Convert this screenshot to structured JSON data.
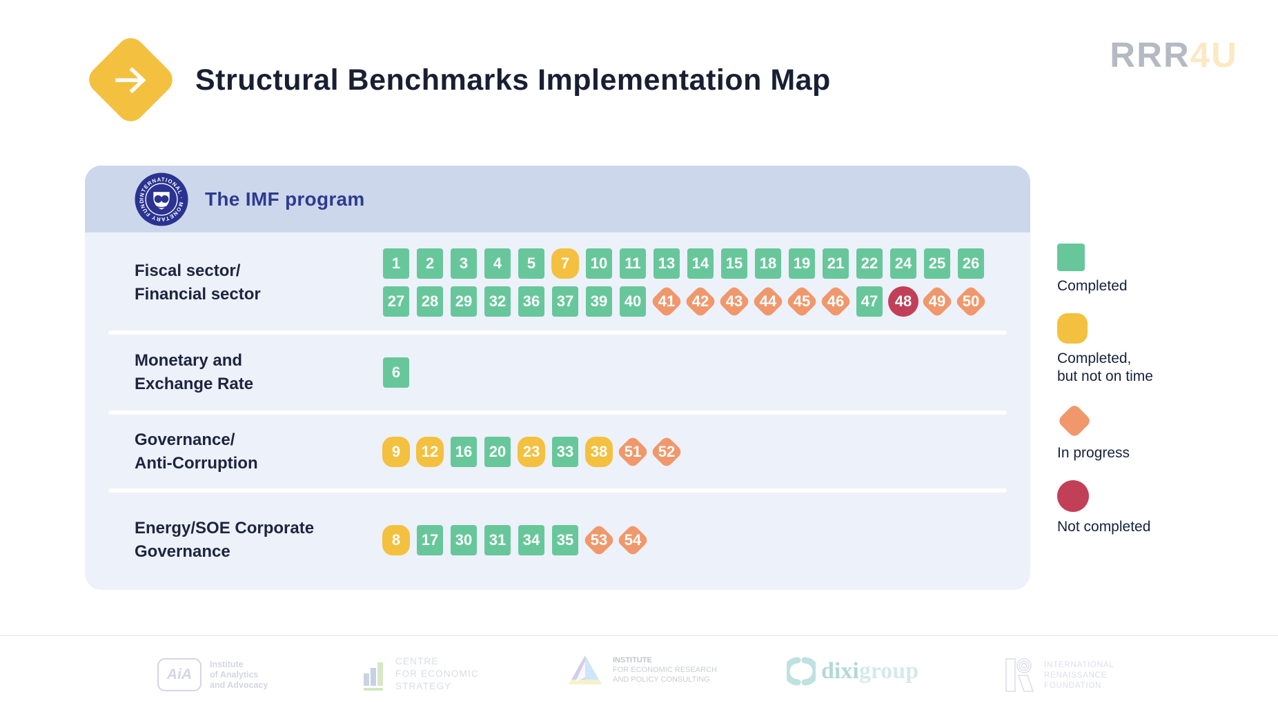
{
  "header": {
    "title": "Structural Benchmarks Implementation Map",
    "brand": {
      "gray": "RRR",
      "accent": "4U"
    }
  },
  "panel": {
    "title": "The IMF program",
    "imf_ring_text": "INTERNATIONAL · MONETARY FUND ·",
    "rows": [
      {
        "label": [
          "Fiscal sector/",
          "Financial sector"
        ],
        "lines": [
          [
            {
              "n": "1",
              "s": "completed"
            },
            {
              "n": "2",
              "s": "completed"
            },
            {
              "n": "3",
              "s": "completed"
            },
            {
              "n": "4",
              "s": "completed"
            },
            {
              "n": "5",
              "s": "completed"
            },
            {
              "n": "7",
              "s": "late"
            },
            {
              "n": "10",
              "s": "completed"
            },
            {
              "n": "11",
              "s": "completed"
            },
            {
              "n": "13",
              "s": "completed"
            },
            {
              "n": "14",
              "s": "completed"
            },
            {
              "n": "15",
              "s": "completed"
            },
            {
              "n": "18",
              "s": "completed"
            },
            {
              "n": "19",
              "s": "completed"
            },
            {
              "n": "21",
              "s": "completed"
            },
            {
              "n": "22",
              "s": "completed"
            },
            {
              "n": "24",
              "s": "completed"
            },
            {
              "n": "25",
              "s": "completed"
            },
            {
              "n": "26",
              "s": "completed"
            }
          ],
          [
            {
              "n": "27",
              "s": "completed"
            },
            {
              "n": "28",
              "s": "completed"
            },
            {
              "n": "29",
              "s": "completed"
            },
            {
              "n": "32",
              "s": "completed"
            },
            {
              "n": "36",
              "s": "completed"
            },
            {
              "n": "37",
              "s": "completed"
            },
            {
              "n": "39",
              "s": "completed"
            },
            {
              "n": "40",
              "s": "completed"
            },
            {
              "n": "41",
              "s": "in_progress"
            },
            {
              "n": "42",
              "s": "in_progress"
            },
            {
              "n": "43",
              "s": "in_progress"
            },
            {
              "n": "44",
              "s": "in_progress"
            },
            {
              "n": "45",
              "s": "in_progress"
            },
            {
              "n": "46",
              "s": "in_progress"
            },
            {
              "n": "47",
              "s": "completed"
            },
            {
              "n": "48",
              "s": "not_completed"
            },
            {
              "n": "49",
              "s": "in_progress"
            },
            {
              "n": "50",
              "s": "in_progress"
            }
          ]
        ]
      },
      {
        "label": [
          "Monetary and",
          "Exchange Rate"
        ],
        "lines": [
          [
            {
              "n": "6",
              "s": "completed"
            }
          ]
        ]
      },
      {
        "label": [
          "Governance/",
          "Anti-Corruption"
        ],
        "lines": [
          [
            {
              "n": "9",
              "s": "late"
            },
            {
              "n": "12",
              "s": "late"
            },
            {
              "n": "16",
              "s": "completed"
            },
            {
              "n": "20",
              "s": "completed"
            },
            {
              "n": "23",
              "s": "late"
            },
            {
              "n": "33",
              "s": "completed"
            },
            {
              "n": "38",
              "s": "late"
            },
            {
              "n": "51",
              "s": "in_progress"
            },
            {
              "n": "52",
              "s": "in_progress"
            }
          ]
        ]
      },
      {
        "label": [
          "Energy/SOE Corporate",
          "Governance"
        ],
        "lines": [
          [
            {
              "n": "8",
              "s": "late"
            },
            {
              "n": "17",
              "s": "completed"
            },
            {
              "n": "30",
              "s": "completed"
            },
            {
              "n": "31",
              "s": "completed"
            },
            {
              "n": "34",
              "s": "completed"
            },
            {
              "n": "35",
              "s": "completed"
            },
            {
              "n": "53",
              "s": "in_progress"
            },
            {
              "n": "54",
              "s": "in_progress"
            }
          ]
        ]
      }
    ]
  },
  "legend": [
    {
      "status": "completed",
      "label": [
        "Completed"
      ]
    },
    {
      "status": "late",
      "label": [
        "Completed,",
        "but not on time"
      ]
    },
    {
      "status": "in_progress",
      "label": [
        "In progress"
      ]
    },
    {
      "status": "not_completed",
      "label": [
        "Not completed"
      ]
    }
  ],
  "footer": {
    "logos": [
      {
        "mark": "AiA",
        "text": [
          "Institute",
          "of Analytics",
          "and Advocacy"
        ]
      },
      {
        "text": [
          "CENTRE",
          "FOR ECONOMIC",
          "STRATEGY"
        ]
      },
      {
        "text": [
          "INSTITUTE",
          "FOR ECONOMIC RESEARCH",
          "AND POLICY CONSULTING"
        ]
      },
      {
        "text_dark": "dixi",
        "text_light": "group"
      },
      {
        "text": [
          "INTERNATIONAL",
          "RENAISSANCE",
          "FOUNDATION"
        ]
      }
    ]
  },
  "colors": {
    "completed": "#67C79B",
    "completed_late": "#F3C13F",
    "in_progress": "#F0986C",
    "not_completed": "#C23F58",
    "panel_background": "#EDF1FA",
    "panel_header_background": "#CDD7EB",
    "imf_blue": "#2B3391",
    "title_navy": "#191F33",
    "brand_gray": "#B5B9C1",
    "brand_accent": "#FBE9C3"
  }
}
